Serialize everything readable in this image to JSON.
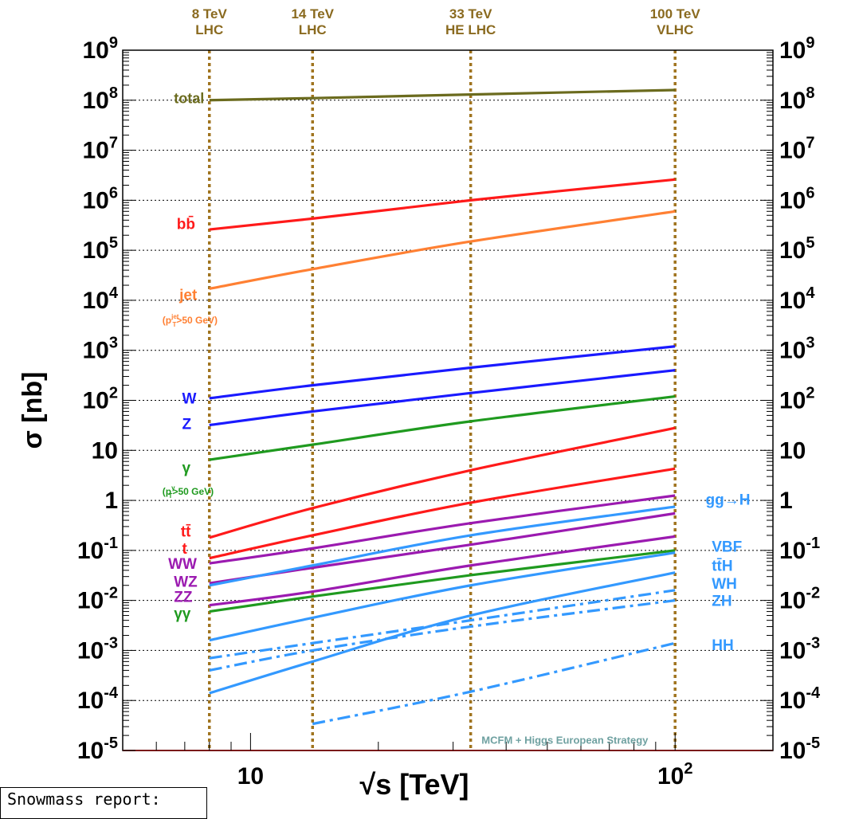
{
  "chart_data": {
    "type": "line",
    "title": "",
    "xlabel": "√s [TeV]",
    "ylabel": "σ [nb]",
    "x_scale": "log",
    "y_scale": "log",
    "xlim": [
      5,
      170
    ],
    "ylim": [
      1e-05,
      1000000000.0
    ],
    "x_tick_labels": [
      {
        "value": 10,
        "label": "10"
      },
      {
        "value": 100,
        "label": "10",
        "sup": "2"
      }
    ],
    "y_tick_labels": [
      {
        "value": 1000000000.0,
        "label": "10",
        "sup": "9"
      },
      {
        "value": 100000000.0,
        "label": "10",
        "sup": "8"
      },
      {
        "value": 10000000.0,
        "label": "10",
        "sup": "7"
      },
      {
        "value": 1000000.0,
        "label": "10",
        "sup": "6"
      },
      {
        "value": 100000.0,
        "label": "10",
        "sup": "5"
      },
      {
        "value": 10000.0,
        "label": "10",
        "sup": "4"
      },
      {
        "value": 1000.0,
        "label": "10",
        "sup": "3"
      },
      {
        "value": 100.0,
        "label": "10",
        "sup": "2"
      },
      {
        "value": 10,
        "label": "10",
        "sup": ""
      },
      {
        "value": 1,
        "label": "1",
        "sup": ""
      },
      {
        "value": 0.1,
        "label": "10",
        "sup": "-1"
      },
      {
        "value": 0.01,
        "label": "10",
        "sup": "-2"
      },
      {
        "value": 0.001,
        "label": "10",
        "sup": "-3"
      },
      {
        "value": 0.0001,
        "label": "10",
        "sup": "-4"
      },
      {
        "value": 1e-05,
        "label": "10",
        "sup": "-5"
      }
    ],
    "grid": "dotted horizontal at each decade",
    "energy_markers": [
      {
        "x": 8,
        "line1": "8 TeV",
        "line2": "LHC"
      },
      {
        "x": 14,
        "line1": "14 TeV",
        "line2": "LHC"
      },
      {
        "x": 33,
        "line1": "33 TeV",
        "line2": "HE LHC"
      },
      {
        "x": 100,
        "line1": "100 TeV",
        "line2": "VLHC"
      }
    ],
    "series": [
      {
        "color": "#6b6b1e",
        "style": "solid",
        "x": [
          8,
          14,
          33,
          100
        ],
        "y": [
          100000000.0,
          110000000.0,
          130000000.0,
          160000000.0
        ]
      },
      {
        "color": "#ff1a1a",
        "style": "solid",
        "x": [
          8,
          14,
          33,
          100
        ],
        "y": [
          260000.0,
          430000.0,
          1000000.0,
          2600000.0
        ]
      },
      {
        "color": "#ff8033",
        "style": "solid",
        "x": [
          8,
          14,
          33,
          100
        ],
        "y": [
          17000.0,
          42000.0,
          150000.0,
          600000.0
        ]
      },
      {
        "color": "#1a1aff",
        "style": "solid",
        "x": [
          8,
          14,
          33,
          100
        ],
        "y": [
          110,
          200,
          450,
          1200
        ]
      },
      {
        "color": "#1a1aff",
        "style": "solid",
        "x": [
          8,
          14,
          33,
          100
        ],
        "y": [
          32,
          60,
          140,
          400
        ]
      },
      {
        "color": "#1f9a1f",
        "style": "solid",
        "x": [
          8,
          14,
          33,
          100
        ],
        "y": [
          6.5,
          13,
          38,
          120
        ]
      },
      {
        "color": "#ff1a1a",
        "style": "solid",
        "x": [
          8,
          14,
          33,
          100
        ],
        "y": [
          0.18,
          0.7,
          4.0,
          28
        ]
      },
      {
        "color": "#ff1a1a",
        "style": "solid",
        "x": [
          8,
          14,
          33,
          100
        ],
        "y": [
          0.07,
          0.2,
          0.9,
          4.3
        ]
      },
      {
        "color": "#9b1ab0",
        "style": "solid",
        "x": [
          8,
          14,
          33,
          100
        ],
        "y": [
          0.055,
          0.11,
          0.35,
          1.25
        ]
      },
      {
        "color": "#9b1ab0",
        "style": "solid",
        "x": [
          8,
          14,
          33,
          100
        ],
        "y": [
          0.022,
          0.045,
          0.13,
          0.55
        ]
      },
      {
        "color": "#9b1ab0",
        "style": "solid",
        "x": [
          8,
          14,
          33,
          100
        ],
        "y": [
          0.008,
          0.015,
          0.05,
          0.19
        ]
      },
      {
        "color": "#1f9a1f",
        "style": "solid",
        "x": [
          8,
          14,
          33,
          100
        ],
        "y": [
          0.006,
          0.012,
          0.032,
          0.1
        ]
      },
      {
        "color": "#3399ff",
        "style": "solid",
        "x": [
          8,
          14,
          33,
          100
        ],
        "y": [
          0.02,
          0.05,
          0.2,
          0.75
        ]
      },
      {
        "color": "#3399ff",
        "style": "solid",
        "x": [
          8,
          14,
          33,
          100
        ],
        "y": [
          0.0016,
          0.0045,
          0.02,
          0.09
        ]
      },
      {
        "color": "#3399ff",
        "style": "solid",
        "x": [
          8,
          14,
          33,
          100
        ],
        "y": [
          0.00014,
          0.0006,
          0.005,
          0.036
        ]
      },
      {
        "color": "#3399ff",
        "style": "dashdot",
        "x": [
          8,
          14,
          33,
          100
        ],
        "y": [
          0.0007,
          0.0014,
          0.004,
          0.016
        ]
      },
      {
        "color": "#3399ff",
        "style": "dashdot",
        "x": [
          8,
          14,
          33,
          100
        ],
        "y": [
          0.0004,
          0.001,
          0.003,
          0.01
        ]
      },
      {
        "color": "#3399ff",
        "style": "dashdot",
        "x": [
          14,
          33,
          100
        ],
        "y": [
          3.4e-05,
          0.00015,
          0.0014
        ]
      }
    ],
    "labels": [
      {
        "text": "total",
        "color": "#6b6b1e",
        "x": 6.6,
        "y": 110000000.0,
        "size": 18
      },
      {
        "text": "bb̄",
        "color": "#ff1a1a",
        "x": 6.7,
        "y": 340000.0,
        "size": 19
      },
      {
        "text": "jet",
        "color": "#ff8033",
        "x": 6.8,
        "y": 13000.0,
        "size": 19
      },
      {
        "text": "(p",
        "sub": "T",
        "sup": "jet",
        "after": ">50 GeV)",
        "color": "#ff8033",
        "x": 6.2,
        "y": 4000.0,
        "size": 12
      },
      {
        "text": "W",
        "color": "#1a1aff",
        "x": 6.9,
        "y": 110,
        "size": 19
      },
      {
        "text": "Z",
        "color": "#1a1aff",
        "x": 6.9,
        "y": 34,
        "size": 19
      },
      {
        "text": "γ",
        "color": "#1f9a1f",
        "x": 6.9,
        "y": 4.5,
        "size": 19
      },
      {
        "text": "(p",
        "sub": "T",
        "sup": "γ",
        "after": ">50 GeV)",
        "color": "#1f9a1f",
        "x": 6.2,
        "y": 1.5,
        "size": 12
      },
      {
        "text": "tt̄",
        "color": "#ff1a1a",
        "x": 6.85,
        "y": 0.24,
        "size": 19
      },
      {
        "text": "t",
        "color": "#ff1a1a",
        "x": 6.9,
        "y": 0.11,
        "size": 19
      },
      {
        "text": "WW",
        "color": "#9b1ab0",
        "x": 6.4,
        "y": 0.055,
        "size": 19
      },
      {
        "text": "WZ",
        "color": "#9b1ab0",
        "x": 6.6,
        "y": 0.024,
        "size": 19
      },
      {
        "text": "ZZ",
        "color": "#9b1ab0",
        "x": 6.6,
        "y": 0.012,
        "size": 19
      },
      {
        "text": "γγ",
        "color": "#1f9a1f",
        "x": 6.6,
        "y": 0.0055,
        "size": 19
      },
      {
        "text": "gg→H",
        "color": "#3399ff",
        "x": 118,
        "y": 1.05,
        "size": 19
      },
      {
        "text": "VBF",
        "color": "#3399ff",
        "x": 122,
        "y": 0.12,
        "size": 19
      },
      {
        "text": "tt̄H",
        "color": "#3399ff",
        "x": 122,
        "y": 0.05,
        "size": 19
      },
      {
        "text": "WH",
        "color": "#3399ff",
        "x": 122,
        "y": 0.022,
        "size": 19
      },
      {
        "text": "ZH",
        "color": "#3399ff",
        "x": 122,
        "y": 0.01,
        "size": 19
      },
      {
        "text": "HH",
        "color": "#3399ff",
        "x": 122,
        "y": 0.0013,
        "size": 19
      },
      {
        "text": "MCFM + Higgs European Strategy",
        "color": "#6fa1a1",
        "x": 35,
        "y": 1.6e-05,
        "size": 13
      }
    ]
  },
  "note": "Snowmass report:"
}
